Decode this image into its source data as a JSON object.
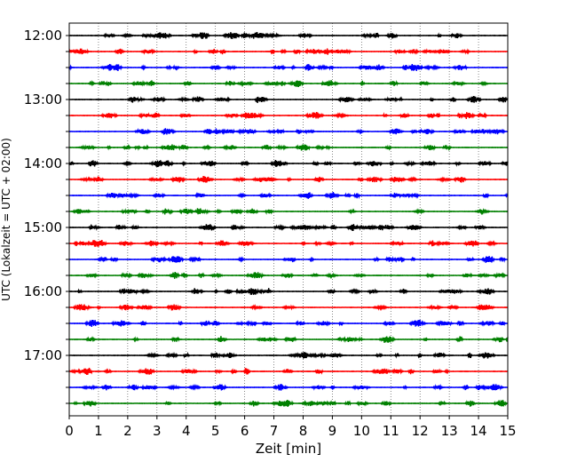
{
  "chart_data": {
    "type": "line",
    "title": "",
    "xlabel": "Zeit  [min]",
    "ylabel": "UTC (Lokalzeit = UTC + 02:00)",
    "xlim": [
      0,
      15
    ],
    "x_ticks": [
      "0",
      "1",
      "2",
      "3",
      "4",
      "5",
      "6",
      "7",
      "8",
      "9",
      "10",
      "11",
      "12",
      "13",
      "14",
      "15"
    ],
    "y_tick_labels": [
      "12:00",
      "13:00",
      "14:00",
      "15:00",
      "16:00",
      "17:00"
    ],
    "grid": "vertical dotted lines at each minute",
    "trace_colors": [
      "#000000",
      "#ff0000",
      "#0000ff",
      "#008000"
    ],
    "traces": [
      {
        "start": "12:00",
        "color": "#000000"
      },
      {
        "start": "12:15",
        "color": "#ff0000"
      },
      {
        "start": "12:30",
        "color": "#0000ff"
      },
      {
        "start": "12:45",
        "color": "#008000"
      },
      {
        "start": "13:00",
        "color": "#000000"
      },
      {
        "start": "13:15",
        "color": "#ff0000"
      },
      {
        "start": "13:30",
        "color": "#0000ff"
      },
      {
        "start": "13:45",
        "color": "#008000"
      },
      {
        "start": "14:00",
        "color": "#000000"
      },
      {
        "start": "14:15",
        "color": "#ff0000"
      },
      {
        "start": "14:30",
        "color": "#0000ff"
      },
      {
        "start": "14:45",
        "color": "#008000"
      },
      {
        "start": "15:00",
        "color": "#000000"
      },
      {
        "start": "15:15",
        "color": "#ff0000"
      },
      {
        "start": "15:30",
        "color": "#0000ff"
      },
      {
        "start": "15:45",
        "color": "#008000"
      },
      {
        "start": "16:00",
        "color": "#000000"
      },
      {
        "start": "16:15",
        "color": "#ff0000"
      },
      {
        "start": "16:30",
        "color": "#0000ff"
      },
      {
        "start": "16:45",
        "color": "#008000"
      },
      {
        "start": "17:00",
        "color": "#000000"
      },
      {
        "start": "17:15",
        "color": "#ff0000"
      },
      {
        "start": "17:30",
        "color": "#0000ff"
      },
      {
        "start": "17:45",
        "color": "#008000"
      }
    ]
  }
}
